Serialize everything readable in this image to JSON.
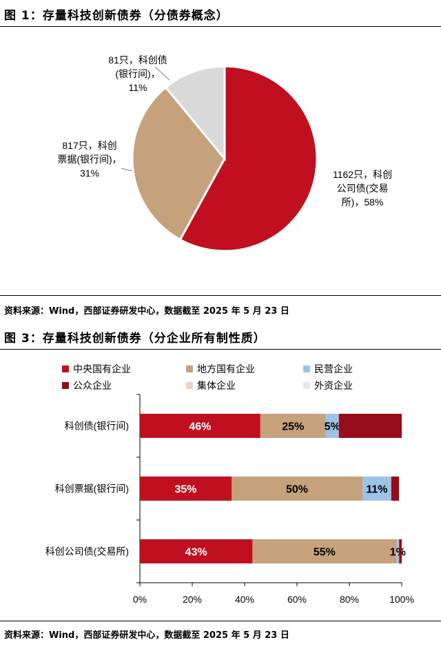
{
  "figures": {
    "fig1": {
      "title": "图 1：存量科技创新债券（分债券概念）",
      "source": "资料来源：Wind，西部证券研发中心，数据截至 2025 年 5 月 23 日"
    },
    "fig3": {
      "title": "图 3：存量科技创新债券（分企业所有制性质）",
      "source": "资料来源：Wind，西部证券研发中心，数据截至 2025 年 5 月 23 日"
    }
  },
  "chart_data": [
    {
      "type": "pie",
      "slices": [
        {
          "value": 58,
          "color": "#C00F1E",
          "label_lines": [
            "1162只，科创",
            "公司债(交易",
            "所)，58%"
          ]
        },
        {
          "value": 31,
          "color": "#C5A17C",
          "label_lines": [
            "817只，科创",
            "票据(银行间)，",
            "31%"
          ]
        },
        {
          "value": 11,
          "color": "#D9D9D9",
          "label_lines": [
            "81只，科创债",
            "(银行间)，",
            "11%"
          ]
        }
      ]
    },
    {
      "type": "bar",
      "orientation": "horizontal",
      "stacked": true,
      "categories": [
        "科创债(银行间)",
        "科创票据(银行间)",
        "科创公司债(交易所)"
      ],
      "series": [
        {
          "name": "中央国有企业",
          "color": "#C00F1E",
          "values": [
            46,
            35,
            43
          ],
          "labels": [
            "46%",
            "35%",
            "43%"
          ],
          "label_color": "#ffffff"
        },
        {
          "name": "地方国有企业",
          "color": "#C5A17C",
          "values": [
            25,
            50,
            55
          ],
          "labels": [
            "25%",
            "50%",
            "55%"
          ],
          "label_color": "#000000"
        },
        {
          "name": "民营企业",
          "color": "#9DC3E6",
          "values": [
            5,
            11,
            1
          ],
          "labels": [
            "5%",
            "11%",
            "1%"
          ],
          "label_color": "#000000"
        },
        {
          "name": "公众企业",
          "color": "#960C18",
          "values": [
            24,
            3,
            1
          ],
          "labels": [
            "",
            "",
            ""
          ],
          "label_color": "#ffffff"
        },
        {
          "name": "集体企业",
          "color": "#E2D6C8",
          "values": [
            0,
            0,
            0
          ],
          "labels": [
            "",
            "",
            ""
          ],
          "label_color": "#000000"
        },
        {
          "name": "外资企业",
          "color": "#E6E6E6",
          "values": [
            0,
            0,
            0
          ],
          "labels": [
            "",
            "",
            ""
          ],
          "label_color": "#000000"
        }
      ],
      "x_ticks": [
        "0%",
        "20%",
        "40%",
        "60%",
        "80%",
        "100%"
      ],
      "xlim": [
        0,
        100
      ],
      "legend_position": "top"
    }
  ]
}
